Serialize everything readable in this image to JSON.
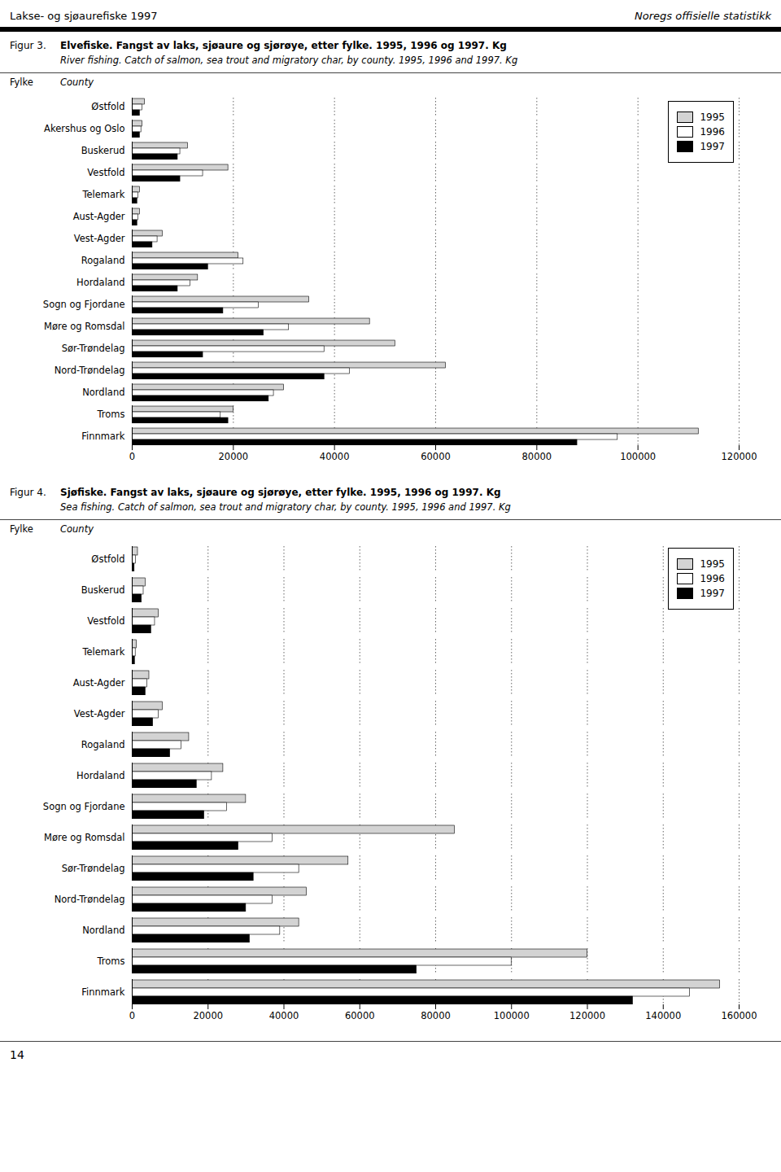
{
  "annotations": [
    "Lakse- og sjøaurefiske 1997",
    "Noregs offisielle statistikk",
    "14"
  ],
  "chart_data": [
    {
      "type": "bar",
      "orientation": "horizontal",
      "title": "Elvefiske. Fangst av laks, sjøaure og sjørøye, etter fylke. 1995, 1996 og 1997. Kg",
      "subtitle": "River fishing. Catch of salmon, sea trout and migratory char, by county. 1995, 1996 and 1997. Kg",
      "annotations": [
        "Figur 3.",
        "Fylke",
        "County"
      ],
      "categories": [
        "Østfold",
        "Akershus og Oslo",
        "Buskerud",
        "Vestfold",
        "Telemark",
        "Aust-Agder",
        "Vest-Agder",
        "Rogaland",
        "Hordaland",
        "Sogn og Fjordane",
        "Møre og Romsdal",
        "Sør-Trøndelag",
        "Nord-Trøndelag",
        "Nordland",
        "Troms",
        "Finnmark"
      ],
      "series": [
        {
          "name": "1995",
          "color": "#d3d3d3",
          "values": [
            2500,
            2000,
            11000,
            19000,
            1500,
            1500,
            6000,
            21000,
            13000,
            35000,
            47000,
            52000,
            62000,
            30000,
            20000,
            112000
          ]
        },
        {
          "name": "1996",
          "color": "#ffffff",
          "values": [
            2000,
            1800,
            9500,
            14000,
            1200,
            1200,
            5000,
            22000,
            11500,
            25000,
            31000,
            38000,
            43000,
            28000,
            17500,
            96000
          ]
        },
        {
          "name": "1997",
          "color": "#000000",
          "values": [
            1500,
            1500,
            9000,
            9500,
            1000,
            1000,
            4000,
            15000,
            9000,
            18000,
            26000,
            14000,
            38000,
            27000,
            19000,
            88000
          ]
        }
      ],
      "xlim": [
        0,
        120000
      ],
      "xticks": [
        0,
        20000,
        40000,
        60000,
        80000,
        100000,
        120000
      ],
      "grid": true,
      "legend": "upper right"
    },
    {
      "type": "bar",
      "orientation": "horizontal",
      "title": "Sjøfiske. Fangst av laks, sjøaure og sjørøye, etter fylke. 1995, 1996 og 1997. Kg",
      "subtitle": "Sea fishing. Catch of salmon, sea trout and migratory char, by county. 1995, 1996 and 1997. Kg",
      "annotations": [
        "Figur 4.",
        "Fylke",
        "County"
      ],
      "categories": [
        "Østfold",
        "Buskerud",
        "Vestfold",
        "Telemark",
        "Aust-Agder",
        "Vest-Agder",
        "Rogaland",
        "Hordaland",
        "Sogn og Fjordane",
        "Møre og Romsdal",
        "Sør-Trøndelag",
        "Nord-Trøndelag",
        "Nordland",
        "Troms",
        "Finnmark"
      ],
      "series": [
        {
          "name": "1995",
          "color": "#d3d3d3",
          "values": [
            1500,
            3500,
            7000,
            1200,
            4500,
            8000,
            15000,
            24000,
            30000,
            85000,
            57000,
            46000,
            44000,
            120000,
            155000
          ]
        },
        {
          "name": "1996",
          "color": "#ffffff",
          "values": [
            1000,
            3000,
            6000,
            900,
            4000,
            7000,
            13000,
            21000,
            25000,
            37000,
            44000,
            37000,
            39000,
            100000,
            147000
          ]
        },
        {
          "name": "1997",
          "color": "#000000",
          "values": [
            600,
            2500,
            5000,
            700,
            3500,
            5500,
            10000,
            17000,
            19000,
            28000,
            32000,
            30000,
            31000,
            75000,
            132000
          ]
        }
      ],
      "xlim": [
        0,
        160000
      ],
      "xticks": [
        0,
        20000,
        40000,
        60000,
        80000,
        100000,
        120000,
        140000,
        160000
      ],
      "grid": true,
      "legend": "upper right"
    }
  ]
}
